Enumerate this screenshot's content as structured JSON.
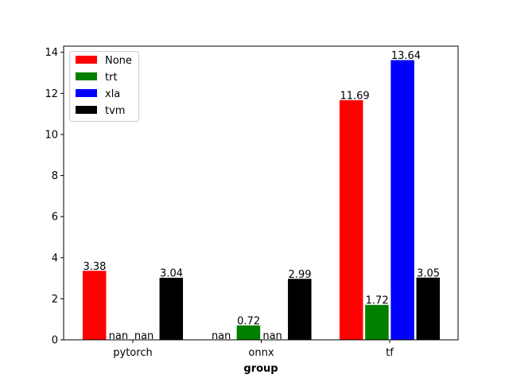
{
  "chart_data": {
    "type": "bar",
    "title": "",
    "xlabel": "group",
    "ylabel": "",
    "categories": [
      "pytorch",
      "onnx",
      "tf"
    ],
    "ylim": [
      0,
      14.3
    ],
    "yticks": [
      0,
      2,
      4,
      6,
      8,
      10,
      12,
      14
    ],
    "grid": false,
    "legend_position": "top-left",
    "series": [
      {
        "name": "None",
        "color": "#ff0000",
        "values": [
          3.38,
          null,
          11.69
        ],
        "labels": [
          "3.38",
          "nan",
          "11.69"
        ]
      },
      {
        "name": "trt",
        "color": "#008000",
        "values": [
          null,
          0.72,
          1.72
        ],
        "labels": [
          "nan",
          "0.72",
          "1.72"
        ]
      },
      {
        "name": "xla",
        "color": "#0000ff",
        "values": [
          null,
          null,
          13.64
        ],
        "labels": [
          "nan",
          "nan",
          "13.64"
        ]
      },
      {
        "name": "tvm",
        "color": "#000000",
        "values": [
          3.04,
          2.99,
          3.05
        ],
        "labels": [
          "3.04",
          "2.99",
          "3.05"
        ]
      }
    ]
  }
}
